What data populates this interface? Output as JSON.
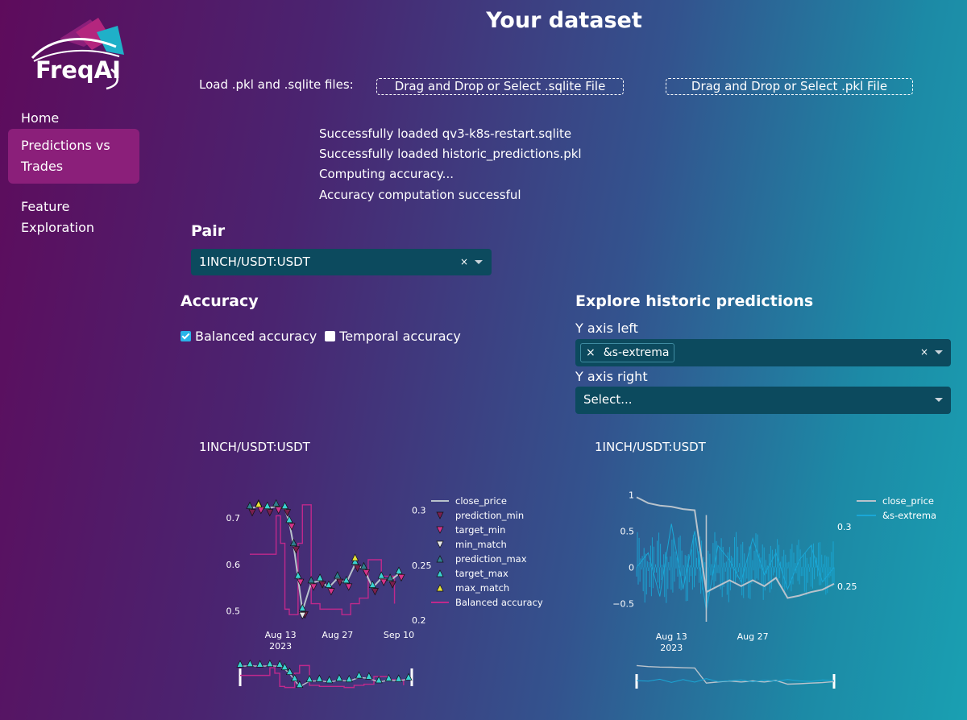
{
  "sidebar": {
    "logo_text": "FreqAI",
    "nav": [
      {
        "label": "Home"
      },
      {
        "label": "Predictions vs Trades"
      },
      {
        "label": "Feature Exploration"
      }
    ]
  },
  "header": {
    "title": "Your dataset"
  },
  "load": {
    "label": "Load .pkl and .sqlite files:",
    "sqlite_button": "Drag and Drop or Select .sqlite File",
    "pkl_button": "Drag and Drop or Select .pkl File"
  },
  "status_lines": [
    "Successfully loaded qv3-k8s-restart.sqlite",
    "Successfully loaded historic_predictions.pkl",
    "Computing accuracy...",
    "Accuracy computation successful"
  ],
  "pair": {
    "title": "Pair",
    "selected": "1INCH/USDT:USDT",
    "clear": "×"
  },
  "accuracy": {
    "title": "Accuracy",
    "options": [
      {
        "label": "Balanced accuracy",
        "checked": true
      },
      {
        "label": "Temporal accuracy",
        "checked": false
      }
    ]
  },
  "explore": {
    "title": "Explore historic predictions",
    "y_left_label": "Y axis left",
    "y_left_chip": "&s-extrema",
    "y_left_chip_remove": "×",
    "y_left_clear": "×",
    "y_right_label": "Y axis right",
    "y_right_placeholder": "Select..."
  },
  "colors": {
    "close_price": "#b9c3cc",
    "pred_min": "#7a1f4e",
    "target_min": "#d6338a",
    "min_match": "#e8e8e8",
    "pred_max": "#2f7f8f",
    "target_max": "#3ad2d2",
    "max_match": "#e8e23a",
    "balanced": "#c0298c",
    "extrema": "#1aa7d6"
  },
  "chart_data": [
    {
      "type": "line",
      "title": "1INCH/USDT:USDT",
      "x_ticks": [
        "Aug 13\n2023",
        "Aug 27",
        "Sep 10"
      ],
      "y_left_ticks": [
        0.5,
        0.6,
        0.7
      ],
      "y_right_ticks": [
        0.2,
        0.25,
        0.3
      ],
      "ylim_left": [
        0.48,
        0.74
      ],
      "ylim_right": [
        0.2,
        0.31
      ],
      "legend": [
        "close_price",
        "prediction_min",
        "target_min",
        "min_match",
        "prediction_max",
        "target_max",
        "max_match",
        "Balanced accuracy"
      ],
      "legend_placement": "right",
      "series": [
        {
          "name": "close_price",
          "x": [
            0,
            2,
            4,
            6,
            8,
            9,
            10,
            11,
            12,
            14,
            16,
            18,
            20,
            22,
            24,
            26,
            28,
            30,
            32,
            34
          ],
          "values": [
            0.72,
            0.725,
            0.72,
            0.725,
            0.72,
            0.69,
            0.64,
            0.57,
            0.5,
            0.56,
            0.565,
            0.55,
            0.57,
            0.56,
            0.6,
            0.59,
            0.55,
            0.57,
            0.565,
            0.58
          ]
        },
        {
          "name": "Balanced accuracy",
          "x": [
            0,
            5,
            6,
            7,
            8,
            9,
            10,
            11,
            12,
            14,
            16,
            20,
            21,
            23,
            25,
            27,
            30,
            33
          ],
          "values": [
            0.26,
            0.26,
            0.295,
            0.27,
            0.21,
            0.205,
            0.205,
            0.27,
            0.305,
            0.215,
            0.21,
            0.21,
            0.205,
            0.215,
            0.22,
            0.255,
            0.24,
            0.215
          ]
        }
      ]
    },
    {
      "type": "line",
      "title": "1INCH/USDT:USDT",
      "x_ticks": [
        "Aug 13\n2023",
        "Aug 27"
      ],
      "y_left_ticks": [
        -0.5,
        0,
        0.5,
        1
      ],
      "y_right_ticks": [
        0.25,
        0.3
      ],
      "ylim_left": [
        -0.75,
        1.05
      ],
      "ylim_right": [
        0.22,
        0.33
      ],
      "legend": [
        "close_price",
        "&s-extrema"
      ],
      "legend_placement": "top-right",
      "series": [
        {
          "name": "close_price",
          "x": [
            0,
            2,
            4,
            6,
            8,
            10,
            12,
            14,
            16,
            18,
            20,
            22,
            24,
            26,
            28,
            30,
            32,
            34
          ],
          "values": [
            0.325,
            0.32,
            0.318,
            0.317,
            0.315,
            0.314,
            0.245,
            0.25,
            0.255,
            0.25,
            0.255,
            0.25,
            0.257,
            0.24,
            0.242,
            0.245,
            0.247,
            0.252
          ]
        },
        {
          "name": "&s-extrema",
          "x": [
            0,
            2,
            4,
            6,
            8,
            10,
            12,
            14,
            16,
            18,
            20,
            22,
            24,
            26,
            28,
            30,
            32,
            34
          ],
          "values": [
            0,
            0.2,
            -0.4,
            0.6,
            -0.3,
            0.5,
            -0.6,
            0.3,
            0.1,
            -0.2,
            0.4,
            -0.1,
            0.2,
            -0.3,
            0.1,
            0.3,
            -0.2,
            0
          ]
        }
      ]
    }
  ]
}
